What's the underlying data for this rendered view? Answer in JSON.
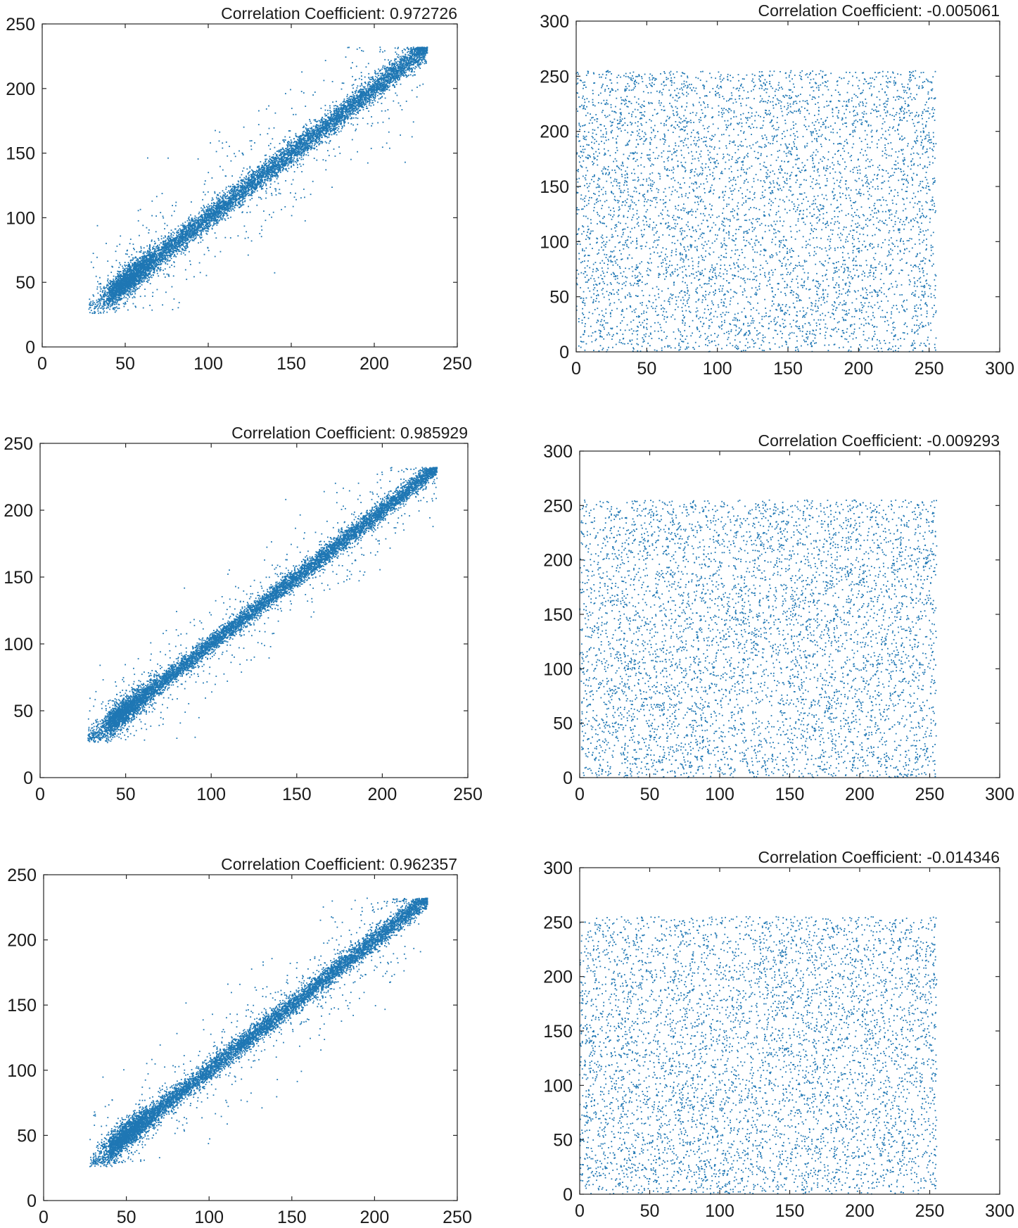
{
  "figure": {
    "marker_color": "#1f77b4"
  },
  "chart_data": [
    {
      "type": "scatter",
      "title": "Correlation Coefficient: 0.972726",
      "xlabel": "",
      "ylabel": "",
      "xlim": [
        0,
        250
      ],
      "ylim": [
        0,
        250
      ],
      "xticks": [
        0,
        50,
        100,
        150,
        200,
        250
      ],
      "yticks": [
        0,
        50,
        100,
        150,
        200,
        250
      ],
      "xtick_labels": [
        "0",
        "50",
        "100",
        "150",
        "200",
        "250"
      ],
      "ytick_labels": [
        "0",
        "50",
        "100",
        "150",
        "200",
        "250"
      ],
      "grid": false,
      "legend": "none",
      "distribution": "correlated",
      "point_count": 9000,
      "x_range": [
        28,
        232
      ],
      "spread": 8,
      "cluster_center": [
        52,
        52
      ]
    },
    {
      "type": "scatter",
      "title": "Correlation Coefficient: -0.005061",
      "xlabel": "",
      "ylabel": "",
      "xlim": [
        0,
        300
      ],
      "ylim": [
        0,
        300
      ],
      "xticks": [
        0,
        50,
        100,
        150,
        200,
        250,
        300
      ],
      "yticks": [
        0,
        50,
        100,
        150,
        200,
        250,
        300
      ],
      "xtick_labels": [
        "0",
        "50",
        "100",
        "150",
        "200",
        "250",
        "300"
      ],
      "ytick_labels": [
        "0",
        "50",
        "100",
        "150",
        "200",
        "250",
        "300"
      ],
      "grid": false,
      "legend": "none",
      "distribution": "uniform",
      "point_count": 5500,
      "x_range": [
        0,
        255
      ],
      "y_range": [
        0,
        255
      ]
    },
    {
      "type": "scatter",
      "title": "Correlation Coefficient: 0.985929",
      "xlabel": "",
      "ylabel": "",
      "xlim": [
        0,
        250
      ],
      "ylim": [
        0,
        250
      ],
      "xticks": [
        0,
        50,
        100,
        150,
        200,
        250
      ],
      "yticks": [
        0,
        50,
        100,
        150,
        200,
        250
      ],
      "xtick_labels": [
        "0",
        "50",
        "100",
        "150",
        "200",
        "250"
      ],
      "ytick_labels": [
        "0",
        "50",
        "100",
        "150",
        "200",
        "250"
      ],
      "grid": false,
      "legend": "none",
      "distribution": "correlated",
      "point_count": 9000,
      "x_range": [
        28,
        232
      ],
      "spread": 6,
      "cluster_center": [
        48,
        48
      ]
    },
    {
      "type": "scatter",
      "title": "Correlation Coefficient: -0.009293",
      "xlabel": "",
      "ylabel": "",
      "xlim": [
        0,
        300
      ],
      "ylim": [
        0,
        300
      ],
      "xticks": [
        0,
        50,
        100,
        150,
        200,
        250,
        300
      ],
      "yticks": [
        0,
        50,
        100,
        150,
        200,
        250,
        300
      ],
      "xtick_labels": [
        "0",
        "50",
        "100",
        "150",
        "200",
        "250",
        "300"
      ],
      "ytick_labels": [
        "0",
        "50",
        "100",
        "150",
        "200",
        "250",
        "300"
      ],
      "grid": false,
      "legend": "none",
      "distribution": "uniform",
      "point_count": 5500,
      "x_range": [
        0,
        255
      ],
      "y_range": [
        0,
        255
      ]
    },
    {
      "type": "scatter",
      "title": "Correlation Coefficient: 0.962357",
      "xlabel": "",
      "ylabel": "",
      "xlim": [
        0,
        250
      ],
      "ylim": [
        0,
        250
      ],
      "xticks": [
        0,
        50,
        100,
        150,
        200,
        250
      ],
      "yticks": [
        0,
        50,
        100,
        150,
        200,
        250
      ],
      "xtick_labels": [
        "0",
        "50",
        "100",
        "150",
        "200",
        "250"
      ],
      "ytick_labels": [
        "0",
        "50",
        "100",
        "150",
        "200",
        "250"
      ],
      "grid": false,
      "legend": "none",
      "distribution": "correlated",
      "point_count": 9000,
      "x_range": [
        28,
        232
      ],
      "spread": 7,
      "cluster_center": [
        50,
        50
      ]
    },
    {
      "type": "scatter",
      "title": "Correlation Coefficient: -0.014346",
      "xlabel": "",
      "ylabel": "",
      "xlim": [
        0,
        300
      ],
      "ylim": [
        0,
        300
      ],
      "xticks": [
        0,
        50,
        100,
        150,
        200,
        250,
        300
      ],
      "yticks": [
        0,
        50,
        100,
        150,
        200,
        250,
        300
      ],
      "xtick_labels": [
        "0",
        "50",
        "100",
        "150",
        "200",
        "250",
        "300"
      ],
      "ytick_labels": [
        "0",
        "50",
        "100",
        "150",
        "200",
        "250",
        "300"
      ],
      "grid": false,
      "legend": "none",
      "distribution": "uniform",
      "point_count": 5500,
      "x_range": [
        0,
        255
      ],
      "y_range": [
        0,
        255
      ]
    }
  ]
}
